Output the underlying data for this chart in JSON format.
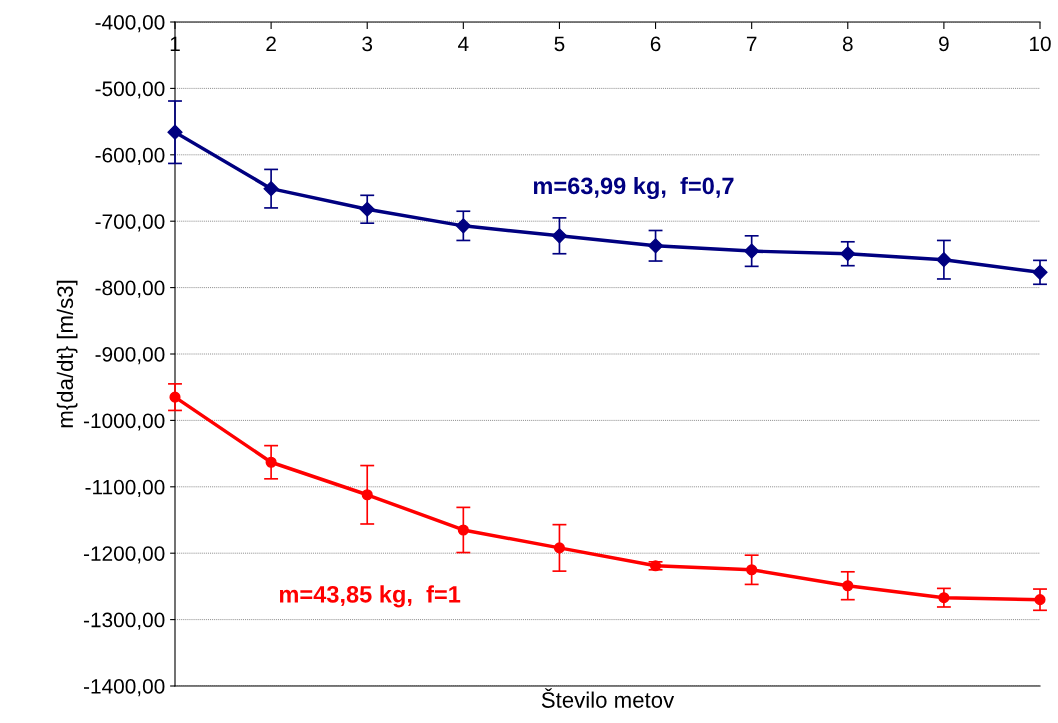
{
  "chart_data": {
    "type": "line",
    "xlabel": "Število metov",
    "ylabel": "m{da/dt} [m/s3]",
    "categories": [
      "1",
      "2",
      "3",
      "4",
      "5",
      "6",
      "7",
      "8",
      "9",
      "10"
    ],
    "series": [
      {
        "name": "m=63,99 kg,  f=0,7",
        "color": "#000080",
        "marker": "diamond",
        "values": [
          -566,
          -651,
          -682,
          -707,
          -722,
          -737,
          -745,
          -749,
          -758,
          -777
        ],
        "errors": [
          47,
          29,
          21,
          22,
          27,
          23,
          23,
          18,
          29,
          18
        ]
      },
      {
        "name": "m=43,85 kg,  f=1",
        "color": "#ff0000",
        "marker": "circle",
        "values": [
          -965,
          -1063,
          -1112,
          -1165,
          -1192,
          -1219,
          -1225,
          -1249,
          -1267,
          -1270
        ],
        "errors": [
          20,
          25,
          44,
          34,
          35,
          6,
          22,
          21,
          14,
          16
        ]
      }
    ],
    "ylim": [
      -1400,
      -400
    ],
    "yticks": [
      {
        "value": -1400,
        "label": "-1400,00"
      },
      {
        "value": -1300,
        "label": "-1300,00"
      },
      {
        "value": -1200,
        "label": "-1200,00"
      },
      {
        "value": -1100,
        "label": "-1100,00"
      },
      {
        "value": -1000,
        "label": "-1000,00"
      },
      {
        "value": -900,
        "label": "-900,00"
      },
      {
        "value": -800,
        "label": "-800,00"
      },
      {
        "value": -700,
        "label": "-700,00"
      },
      {
        "value": -600,
        "label": "-600,00"
      },
      {
        "value": -500,
        "label": "-500,00"
      },
      {
        "value": -400,
        "label": "-400,00"
      }
    ],
    "grid": "y",
    "legend": false
  }
}
